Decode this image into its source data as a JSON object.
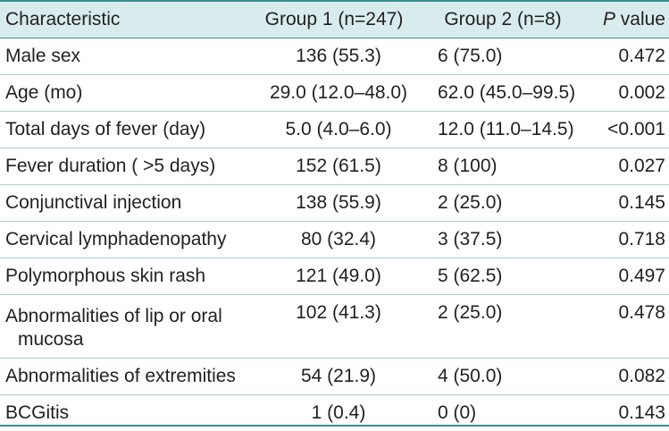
{
  "header": {
    "characteristic": "Characteristic",
    "group1": "Group 1 (n=247)",
    "group2": "Group 2 (n=8)",
    "p_italic": "P",
    "p_rest": " value"
  },
  "rows": [
    {
      "characteristic": "Male sex",
      "group1": "136 (55.3)",
      "group2": "6 (75.0)",
      "p": "0.472"
    },
    {
      "characteristic": "Age (mo)",
      "group1": "29.0 (12.0–48.0)",
      "group2": "62.0 (45.0–99.5)",
      "p": "0.002"
    },
    {
      "characteristic": "Total days of fever (day)",
      "group1": "5.0 (4.0–6.0)",
      "group2": "12.0 (11.0–14.5)",
      "p": "<0.001"
    },
    {
      "characteristic": "Fever duration ( >5 days)",
      "group1": "152 (61.5)",
      "group2": "8 (100)",
      "p": "0.027"
    },
    {
      "characteristic": "Conjunctival injection",
      "group1": "138 (55.9)",
      "group2": "2 (25.0)",
      "p": "0.145"
    },
    {
      "characteristic": "Cervical lymphadenopathy",
      "group1": "80 (32.4)",
      "group2": "3 (37.5)",
      "p": "0.718"
    },
    {
      "characteristic": "Polymorphous skin rash",
      "group1": "121 (49.0)",
      "group2": "5 (62.5)",
      "p": "0.497"
    },
    {
      "characteristic_line1": "Abnormalities of lip or oral",
      "characteristic_line2": "mucosa",
      "group1": "102 (41.3)",
      "group2": "2 (25.0)",
      "p": "0.478"
    },
    {
      "characteristic": "Abnormalities of extremities",
      "group1": "54 (21.9)",
      "group2": "4 (50.0)",
      "p": "0.082"
    },
    {
      "characteristic": "BCGitis",
      "group1": "1 (0.4)",
      "group2": "0 (0)",
      "p": "0.143"
    }
  ],
  "colors": {
    "rule": "#3a8c94",
    "header_bg": "#d8ecee",
    "row_divider": "#a9cfd3",
    "text": "#231f20"
  }
}
